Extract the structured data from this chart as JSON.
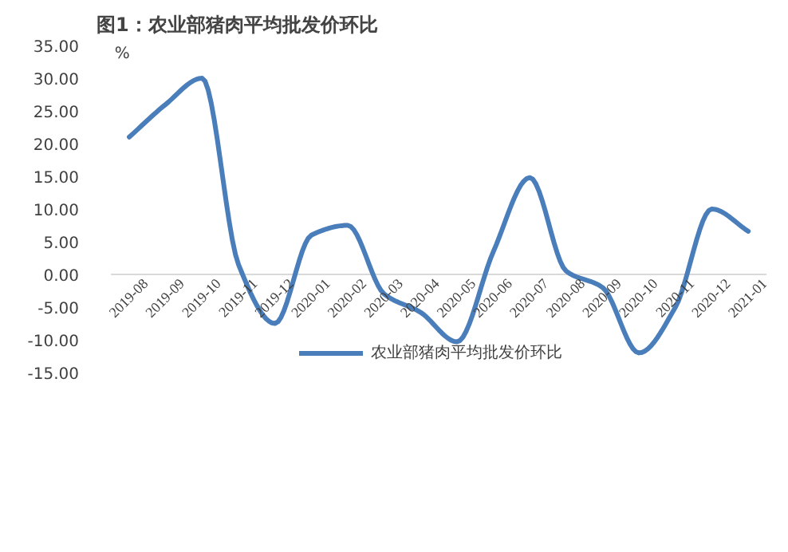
{
  "chart_data": {
    "type": "line",
    "title": "图1：农业部猪肉平均批发价环比",
    "ylabel": "%",
    "categories": [
      "2019-08",
      "2019-09",
      "2019-10",
      "2019-11",
      "2019-12",
      "2020-01",
      "2020-02",
      "2020-03",
      "2020-04",
      "2020-05",
      "2020-06",
      "2020-07",
      "2020-08",
      "2020-09",
      "2020-10",
      "2020-11",
      "2020-12",
      "2021-01"
    ],
    "series": [
      {
        "name": "农业部猪肉平均批发价环比",
        "color": "#4a7ebb",
        "values": [
          21,
          26,
          30,
          1.5,
          -7.5,
          6,
          7.5,
          -3,
          -5.8,
          -10.3,
          3.5,
          14.8,
          0.5,
          -2,
          -12,
          -5,
          10,
          6.6
        ]
      }
    ],
    "ylim": [
      -15,
      35
    ],
    "yticks": [
      {
        "value": -15,
        "label": "-15.00"
      },
      {
        "value": -10,
        "label": "-10.00"
      },
      {
        "value": -5,
        "label": "-5.00"
      },
      {
        "value": 0,
        "label": "0.00"
      },
      {
        "value": 5,
        "label": "5.00"
      },
      {
        "value": 10,
        "label": "10.00"
      },
      {
        "value": 15,
        "label": "15.00"
      },
      {
        "value": 20,
        "label": "20.00"
      },
      {
        "value": 25,
        "label": "25.00"
      },
      {
        "value": 30,
        "label": "30.00"
      },
      {
        "value": 35,
        "label": "35.00"
      }
    ],
    "legend": "bottom",
    "grid": false,
    "marker": "none",
    "line_style": "solid"
  }
}
